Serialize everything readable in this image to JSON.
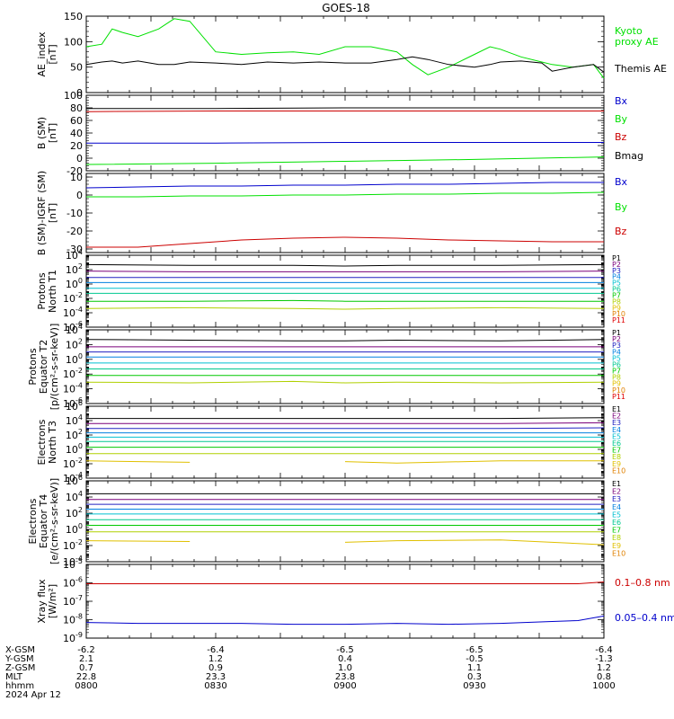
{
  "title": "GOES-18",
  "colors": {
    "black": "#000000",
    "green": "#00e000",
    "red": "#cc0000",
    "blue": "#0000cc",
    "ch": [
      "#000000",
      "#7a007a",
      "#2020c0",
      "#0080e0",
      "#00c0d0",
      "#00c890",
      "#00c800",
      "#b0d000",
      "#e0c000",
      "#e08000",
      "#e00000",
      "#a00000"
    ]
  },
  "time_axis": {
    "labels": [
      "0800",
      "0830",
      "0900",
      "0930",
      "1000"
    ],
    "date": "2024 Apr 12"
  },
  "orbit": {
    "rows": [
      {
        "name": "X-GSM",
        "values": [
          "-6.2",
          "-6.4",
          "-6.5",
          "-6.5",
          "-6.4"
        ]
      },
      {
        "name": "Y-GSM",
        "values": [
          "2.1",
          "1.2",
          "0.4",
          "-0.5",
          "-1.3"
        ]
      },
      {
        "name": "Z-GSM",
        "values": [
          "0.7",
          "0.9",
          "1.0",
          "1.1",
          "1.2"
        ]
      },
      {
        "name": "MLT",
        "values": [
          "22.8",
          "23.3",
          "23.8",
          "0.3",
          "0.8"
        ]
      },
      {
        "name": "hhmm",
        "values": [
          "0800",
          "0830",
          "0900",
          "0930",
          "1000"
        ]
      }
    ]
  },
  "chart_data": [
    {
      "type": "line",
      "ylabel": [
        "AE_index",
        "[nT]"
      ],
      "ylim": [
        0,
        150
      ],
      "yticks": [
        {
          "v": 0,
          "t": "0"
        },
        {
          "v": 50,
          "t": "50"
        },
        {
          "v": 100,
          "t": "100"
        },
        {
          "v": 150,
          "t": "150"
        }
      ],
      "x": [
        0,
        3,
        5,
        7,
        10,
        14,
        17,
        20,
        25,
        30,
        35,
        40,
        45,
        50,
        55,
        60,
        63,
        66,
        70,
        75,
        78,
        80,
        84,
        88,
        90,
        94,
        98,
        100
      ],
      "series": [
        {
          "name": "Kyoto proxy AE",
          "label": [
            "Kyoto",
            "proxy AE"
          ],
          "color": "green",
          "values": [
            90,
            95,
            125,
            118,
            110,
            125,
            145,
            140,
            80,
            75,
            78,
            80,
            75,
            90,
            90,
            80,
            55,
            35,
            50,
            75,
            90,
            85,
            70,
            60,
            55,
            50,
            55,
            28
          ]
        },
        {
          "name": "Themis AE",
          "label": [
            "Themis AE"
          ],
          "color": "black",
          "values": [
            55,
            60,
            62,
            58,
            62,
            55,
            55,
            60,
            58,
            55,
            60,
            58,
            60,
            58,
            58,
            65,
            70,
            65,
            55,
            50,
            55,
            60,
            62,
            58,
            42,
            50,
            55,
            40
          ]
        }
      ]
    },
    {
      "type": "line",
      "ylabel": [
        "B (SM)",
        "[nT]"
      ],
      "ylim": [
        -20,
        100
      ],
      "yticks": [
        {
          "v": -20,
          "t": "-20"
        },
        {
          "v": 0,
          "t": "0"
        },
        {
          "v": 20,
          "t": "20"
        },
        {
          "v": 40,
          "t": "40"
        },
        {
          "v": 60,
          "t": "60"
        },
        {
          "v": 80,
          "t": "80"
        },
        {
          "v": 100,
          "t": "100"
        }
      ],
      "x": [
        0,
        25,
        50,
        75,
        100
      ],
      "series": [
        {
          "name": "Bx",
          "label": [
            "Bx"
          ],
          "color": "blue",
          "values": [
            24,
            24,
            25,
            25,
            25
          ]
        },
        {
          "name": "By",
          "label": [
            "By"
          ],
          "color": "green",
          "values": [
            -10,
            -8,
            -5,
            -2,
            2
          ]
        },
        {
          "name": "Bz",
          "label": [
            "Bz"
          ],
          "color": "red",
          "values": [
            74,
            75,
            75,
            75,
            75
          ]
        },
        {
          "name": "Bmag",
          "label": [
            "Bmag"
          ],
          "color": "black",
          "values": [
            79,
            79,
            80,
            80,
            80
          ]
        }
      ]
    },
    {
      "type": "line",
      "ylabel": [
        "B (SM)-IGRF (SM)",
        "[nT]"
      ],
      "ylim": [
        -32,
        12
      ],
      "yticks": [
        {
          "v": -30,
          "t": "-30"
        },
        {
          "v": -20,
          "t": "-20"
        },
        {
          "v": -10,
          "t": "-10"
        },
        {
          "v": 0,
          "t": "0"
        },
        {
          "v": 10,
          "t": "10"
        }
      ],
      "x": [
        0,
        10,
        20,
        30,
        40,
        50,
        60,
        70,
        80,
        90,
        100
      ],
      "series": [
        {
          "name": "Bx",
          "label": [
            "Bx"
          ],
          "color": "blue",
          "values": [
            4,
            4.5,
            5,
            5,
            5.5,
            5.5,
            6,
            6,
            6.5,
            7,
            7
          ]
        },
        {
          "name": "By",
          "label": [
            "By"
          ],
          "color": "green",
          "values": [
            -1,
            -1,
            -0.5,
            -0.5,
            0,
            0,
            0.5,
            0.5,
            1,
            1,
            1.5
          ]
        },
        {
          "name": "Bz",
          "label": [
            "Bz"
          ],
          "color": "red",
          "values": [
            -29,
            -29,
            -27,
            -25,
            -24,
            -23.5,
            -24,
            -25,
            -25.5,
            -26,
            -26
          ]
        }
      ]
    },
    {
      "type": "line",
      "log": true,
      "ylabel": [
        "Protons",
        "North T1"
      ],
      "ylim": [
        -6,
        4
      ],
      "yticks": [
        {
          "v": -6,
          "t": "10^-6"
        },
        {
          "v": -4,
          "t": "10^-4"
        },
        {
          "v": -2,
          "t": "10^-2"
        },
        {
          "v": 0,
          "t": "10^0"
        },
        {
          "v": 2,
          "t": "10^2"
        },
        {
          "v": 4,
          "t": "10^4"
        }
      ],
      "channels": [
        "P1",
        "P2",
        "P3",
        "P4",
        "P5",
        "P6",
        "P7",
        "P8",
        "P9",
        "P10",
        "P11"
      ],
      "x": [
        0,
        20,
        40,
        50,
        60,
        80,
        100
      ],
      "series": [
        {
          "name": "P1",
          "values": [
            2.7,
            2.6,
            2.6,
            2.5,
            2.6,
            2.6,
            2.7
          ]
        },
        {
          "name": "P2",
          "values": [
            1.8,
            1.7,
            1.7,
            1.7,
            1.7,
            1.7,
            1.8
          ]
        },
        {
          "name": "P3",
          "values": [
            0.9,
            0.9,
            0.9,
            0.9,
            0.9,
            0.9,
            0.9
          ]
        },
        {
          "name": "P4",
          "values": [
            0.2,
            0.2,
            0.2,
            0.2,
            0.2,
            0.2,
            0.2
          ]
        },
        {
          "name": "P5",
          "values": [
            -0.6,
            -0.6,
            -0.6,
            -0.6,
            -0.6,
            -0.6,
            -0.6
          ]
        },
        {
          "name": "P6",
          "values": [
            -1.3,
            -1.3,
            -1.3,
            -1.3,
            -1.3,
            -1.3,
            -1.3
          ]
        },
        {
          "name": "P7",
          "values": [
            -2.4,
            -2.4,
            -2.3,
            -2.4,
            -2.4,
            -2.4,
            -2.4
          ]
        },
        {
          "name": "P8",
          "values": [
            -3.4,
            -3.3,
            -3.4,
            -3.5,
            -3.4,
            -3.3,
            -3.4
          ]
        },
        {
          "name": "P9",
          "values": [
            -4.7,
            null,
            null,
            -4.6,
            null,
            null,
            -4.6
          ]
        }
      ]
    },
    {
      "type": "line",
      "log": true,
      "ylabel": [
        "Protons",
        "Equator T2",
        "[p/(cm²-s-sr-keV)]"
      ],
      "ylim": [
        -6,
        4
      ],
      "yticks": [
        {
          "v": -6,
          "t": "10^-6"
        },
        {
          "v": -4,
          "t": "10^-4"
        },
        {
          "v": -2,
          "t": "10^-2"
        },
        {
          "v": 0,
          "t": "10^0"
        },
        {
          "v": 2,
          "t": "10^2"
        },
        {
          "v": 4,
          "t": "10^4"
        }
      ],
      "channels": [
        "P1",
        "P2",
        "P3",
        "P4",
        "P5",
        "P6",
        "P7",
        "P8",
        "P9",
        "P10",
        "P11"
      ],
      "x": [
        0,
        20,
        40,
        50,
        60,
        80,
        100
      ],
      "series": [
        {
          "name": "P1",
          "values": [
            2.7,
            2.6,
            2.5,
            2.5,
            2.6,
            2.5,
            2.7
          ]
        },
        {
          "name": "P2",
          "values": [
            1.7,
            1.7,
            1.7,
            1.7,
            1.7,
            1.7,
            1.7
          ]
        },
        {
          "name": "P3",
          "values": [
            1.0,
            1.0,
            1.0,
            1.0,
            1.0,
            1.0,
            1.0
          ]
        },
        {
          "name": "P4",
          "values": [
            0.3,
            0.3,
            0.3,
            0.3,
            0.3,
            0.3,
            0.3
          ]
        },
        {
          "name": "P5",
          "values": [
            -0.5,
            -0.5,
            -0.5,
            -0.5,
            -0.5,
            -0.5,
            -0.5
          ]
        },
        {
          "name": "P6",
          "values": [
            -1.3,
            -1.3,
            -1.3,
            -1.3,
            -1.3,
            -1.3,
            -1.3
          ]
        },
        {
          "name": "P7",
          "values": [
            -2.2,
            -2.2,
            -2.2,
            -2.2,
            -2.2,
            -2.2,
            -2.2
          ]
        },
        {
          "name": "P8",
          "values": [
            -3.1,
            -3.2,
            -3.0,
            -3.2,
            -3.1,
            -3.2,
            -3.1
          ]
        },
        {
          "name": "P9",
          "values": [
            -4.2,
            null,
            -4.3,
            null,
            null,
            -4.2,
            null
          ]
        }
      ]
    },
    {
      "type": "line",
      "log": true,
      "ylabel": [
        "Electrons",
        "North T3"
      ],
      "ylim": [
        -4,
        6
      ],
      "yticks": [
        {
          "v": -4,
          "t": "10^-4"
        },
        {
          "v": -2,
          "t": "10^-2"
        },
        {
          "v": 0,
          "t": "10^0"
        },
        {
          "v": 2,
          "t": "10^2"
        },
        {
          "v": 4,
          "t": "10^4"
        },
        {
          "v": 6,
          "t": "10^6"
        }
      ],
      "channels": [
        "E1",
        "E2",
        "E3",
        "E4",
        "E5",
        "E6",
        "E7",
        "E8",
        "E9",
        "E10"
      ],
      "x": [
        0,
        20,
        40,
        50,
        60,
        80,
        100
      ],
      "series": [
        {
          "name": "E1",
          "values": [
            4.3,
            4.3,
            4.3,
            4.3,
            4.3,
            4.3,
            4.4
          ]
        },
        {
          "name": "E2",
          "values": [
            3.6,
            3.6,
            3.6,
            3.6,
            3.6,
            3.6,
            3.7
          ]
        },
        {
          "name": "E3",
          "values": [
            2.9,
            2.9,
            2.9,
            2.9,
            2.9,
            2.9,
            3.0
          ]
        },
        {
          "name": "E4",
          "values": [
            2.3,
            2.3,
            2.3,
            2.3,
            2.3,
            2.3,
            2.3
          ]
        },
        {
          "name": "E5",
          "values": [
            1.7,
            1.7,
            1.7,
            1.7,
            1.7,
            1.7,
            1.7
          ]
        },
        {
          "name": "E6",
          "values": [
            1.1,
            1.1,
            1.1,
            1.1,
            1.1,
            1.1,
            1.1
          ]
        },
        {
          "name": "E7",
          "values": [
            0.3,
            0.3,
            0.3,
            0.3,
            0.3,
            0.3,
            0.3
          ]
        },
        {
          "name": "E8",
          "values": [
            -0.6,
            -0.6,
            -0.6,
            -0.6,
            -0.6,
            -0.6,
            -0.6
          ]
        },
        {
          "name": "E9",
          "values": [
            -1.6,
            -1.8,
            null,
            -1.7,
            -1.9,
            -1.6,
            -1.6
          ]
        }
      ]
    },
    {
      "type": "line",
      "log": true,
      "ylabel": [
        "Electrons",
        "Equator T4",
        "[e/(cm²-s-sr-keV)]"
      ],
      "ylim": [
        -4,
        6
      ],
      "yticks": [
        {
          "v": -4,
          "t": "10^-4"
        },
        {
          "v": -2,
          "t": "10^-2"
        },
        {
          "v": 0,
          "t": "10^0"
        },
        {
          "v": 2,
          "t": "10^2"
        },
        {
          "v": 4,
          "t": "10^4"
        },
        {
          "v": 6,
          "t": "10^6"
        }
      ],
      "channels": [
        "E1",
        "E2",
        "E3",
        "E4",
        "E5",
        "E6",
        "E7",
        "E8",
        "E9",
        "E10"
      ],
      "x": [
        0,
        20,
        40,
        50,
        60,
        80,
        100
      ],
      "series": [
        {
          "name": "E1",
          "values": [
            4.4,
            4.4,
            4.4,
            4.4,
            4.4,
            4.4,
            4.4
          ]
        },
        {
          "name": "E2",
          "values": [
            3.7,
            3.7,
            3.7,
            3.7,
            3.7,
            3.7,
            3.7
          ]
        },
        {
          "name": "E3",
          "values": [
            3.1,
            3.1,
            3.1,
            3.1,
            3.1,
            3.1,
            3.1
          ]
        },
        {
          "name": "E4",
          "values": [
            2.5,
            2.5,
            2.5,
            2.5,
            2.5,
            2.5,
            2.5
          ]
        },
        {
          "name": "E5",
          "values": [
            1.9,
            1.9,
            1.9,
            1.9,
            1.9,
            1.9,
            1.9
          ]
        },
        {
          "name": "E6",
          "values": [
            1.2,
            1.2,
            1.2,
            1.2,
            1.2,
            1.2,
            1.2
          ]
        },
        {
          "name": "E7",
          "values": [
            0.5,
            0.5,
            0.5,
            0.5,
            0.5,
            0.5,
            0.5
          ]
        },
        {
          "name": "E8",
          "values": [
            -0.3,
            -0.3,
            -0.3,
            -0.3,
            -0.3,
            -0.3,
            -0.3
          ]
        },
        {
          "name": "E9",
          "values": [
            -1.4,
            -1.5,
            null,
            -1.6,
            -1.4,
            -1.3,
            -1.9
          ]
        }
      ]
    },
    {
      "type": "line",
      "log": true,
      "ylabel": [
        "Xray flux",
        "[W/m²]"
      ],
      "ylim": [
        -9,
        -5
      ],
      "yticks": [
        {
          "v": -9,
          "t": "10^-9"
        },
        {
          "v": -8,
          "t": "10^-8"
        },
        {
          "v": -7,
          "t": "10^-7"
        },
        {
          "v": -6,
          "t": "10^-6"
        },
        {
          "v": -5,
          "t": "10^-5"
        }
      ],
      "x": [
        0,
        10,
        20,
        30,
        40,
        50,
        60,
        70,
        80,
        90,
        95,
        100
      ],
      "series": [
        {
          "name": "0.1-0.8 nm",
          "label": [
            "0.1–0.8 nm"
          ],
          "color": "red",
          "values": [
            -6.05,
            -6.05,
            -6.05,
            -6.05,
            -6.05,
            -6.05,
            -6.05,
            -6.05,
            -6.05,
            -6.05,
            -6.05,
            -5.95
          ]
        },
        {
          "name": "0.05-0.4 nm",
          "label": [
            "0.05–0.4 nm"
          ],
          "color": "blue",
          "values": [
            -8.15,
            -8.2,
            -8.2,
            -8.2,
            -8.25,
            -8.25,
            -8.2,
            -8.25,
            -8.2,
            -8.1,
            -8.05,
            -7.8
          ]
        }
      ]
    }
  ]
}
